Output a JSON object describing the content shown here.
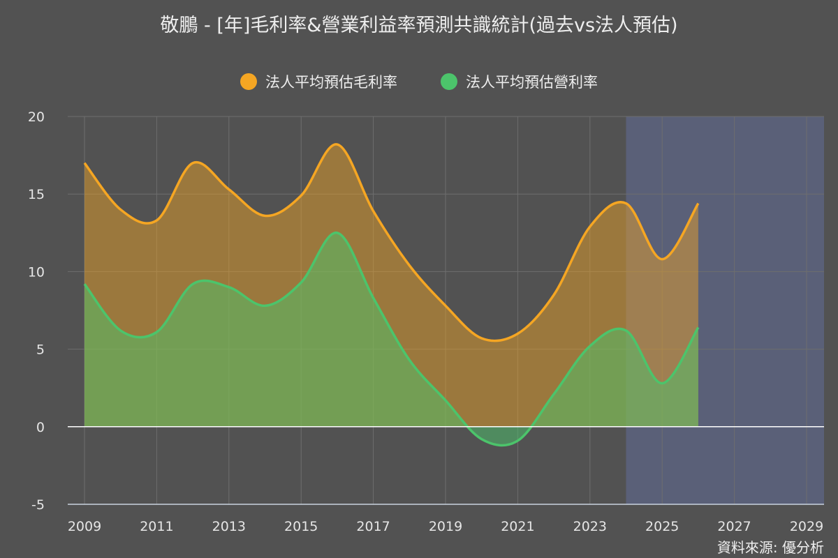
{
  "title": "敬鵬 - [年]毛利率&營業利益率預測共識統計(過去vs法人預估)",
  "source": "資料來源: 優分析",
  "colors": {
    "background": "#525252",
    "gross": "#F5A623",
    "operating": "#4CC46B",
    "forecast_band": "#5A6078",
    "grid": "#6e6e6e",
    "zero_line": "#ffffff"
  },
  "legend": [
    {
      "label": "法人平均預估毛利率",
      "color": "#F5A623"
    },
    {
      "label": "法人平均預估營利率",
      "color": "#4CC46B"
    }
  ],
  "chart_data": {
    "type": "area",
    "title": "敬鵬 - [年]毛利率&營業利益率預測共識統計(過去vs法人預估)",
    "xlabel": "",
    "ylabel": "",
    "x": [
      2009,
      2010,
      2011,
      2012,
      2013,
      2014,
      2015,
      2016,
      2017,
      2018,
      2019,
      2020,
      2021,
      2022,
      2023,
      2024,
      2025,
      2026
    ],
    "xlim": [
      2009,
      2029
    ],
    "ylim": [
      -5,
      20
    ],
    "x_ticks": [
      "2009",
      "2011",
      "2013",
      "2015",
      "2017",
      "2019",
      "2021",
      "2023",
      "2025",
      "2027",
      "2029"
    ],
    "y_ticks": [
      "20",
      "15",
      "10",
      "5",
      "0",
      "-5"
    ],
    "forecast_region": [
      2024,
      2029
    ],
    "grid": true,
    "legend_position": "top-center",
    "series": [
      {
        "name": "法人平均預估毛利率",
        "values": [
          17.0,
          14.0,
          13.3,
          17.0,
          15.3,
          13.6,
          14.9,
          18.2,
          13.9,
          10.4,
          7.8,
          5.7,
          6.0,
          8.5,
          12.9,
          14.4,
          10.8,
          14.4
        ]
      },
      {
        "name": "法人平均預估營利率",
        "values": [
          9.2,
          6.2,
          6.1,
          9.2,
          9.0,
          7.8,
          9.3,
          12.5,
          8.3,
          4.3,
          1.7,
          -0.8,
          -0.9,
          2.1,
          5.2,
          6.2,
          2.8,
          6.4
        ]
      }
    ]
  }
}
